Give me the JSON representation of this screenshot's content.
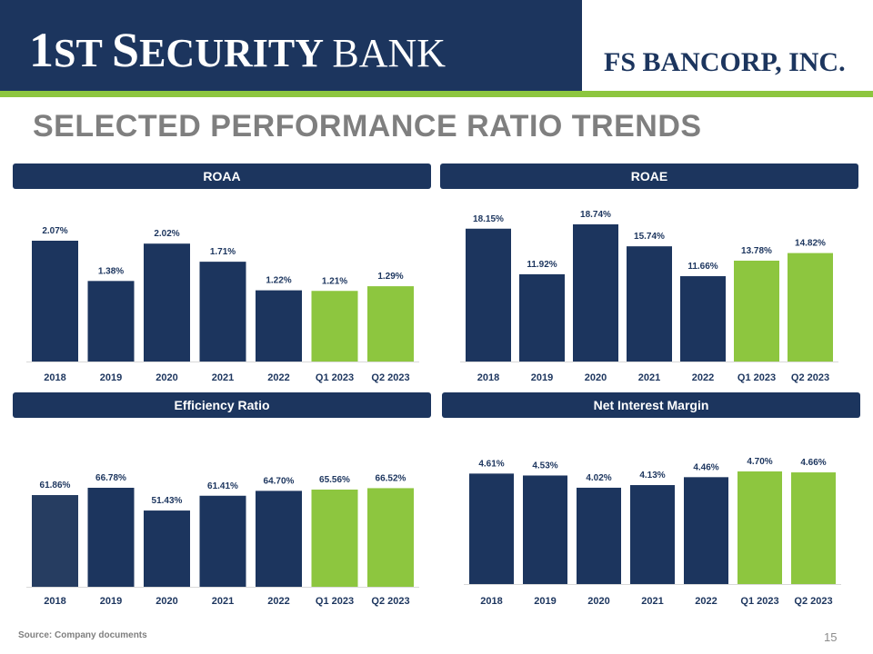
{
  "header": {
    "bank_name_first": "1",
    "bank_name_rest": "ST",
    "bank_name_security_s": "S",
    "bank_name_security_rest": "ECURITY",
    "bank_name_bank": "BANK",
    "bancorp_logo": "FS BANCORP, INC."
  },
  "title": "SELECTED PERFORMANCE RATIO TRENDS",
  "colors": {
    "navy": "#1c355e",
    "green": "#8dc63f",
    "eff2018": "#263d61"
  },
  "chart_data": [
    {
      "type": "bar",
      "title": "ROAA",
      "categories": [
        "2018",
        "2019",
        "2020",
        "2021",
        "2022",
        "Q1 2023",
        "Q2 2023"
      ],
      "values": [
        2.07,
        1.38,
        2.02,
        1.71,
        1.22,
        1.21,
        1.29
      ],
      "labels": [
        "2.07%",
        "1.38%",
        "2.02%",
        "1.71%",
        "1.22%",
        "1.21%",
        "1.29%"
      ],
      "highlight": [
        false,
        false,
        false,
        false,
        false,
        true,
        true
      ],
      "ylim": [
        0,
        2.07
      ]
    },
    {
      "type": "bar",
      "title": "ROAE",
      "categories": [
        "2018",
        "2019",
        "2020",
        "2021",
        "2022",
        "Q1 2023",
        "Q2 2023"
      ],
      "values": [
        18.15,
        11.92,
        18.74,
        15.74,
        11.66,
        13.78,
        14.82
      ],
      "labels": [
        "18.15%",
        "11.92%",
        "18.74%",
        "15.74%",
        "11.66%",
        "13.78%",
        "14.82%"
      ],
      "highlight": [
        false,
        false,
        false,
        false,
        false,
        true,
        true
      ],
      "ylim": [
        0,
        18.74
      ]
    },
    {
      "type": "bar",
      "title": "Efficiency Ratio",
      "categories": [
        "2018",
        "2019",
        "2020",
        "2021",
        "2022",
        "Q1 2023",
        "Q2 2023"
      ],
      "values": [
        61.86,
        66.78,
        51.43,
        61.41,
        64.7,
        65.56,
        66.52
      ],
      "labels": [
        "61.86%",
        "66.78%",
        "51.43%",
        "61.41%",
        "64.70%",
        "65.56%",
        "66.52%"
      ],
      "highlight": [
        false,
        false,
        false,
        false,
        false,
        true,
        true
      ],
      "ylim": [
        0,
        66.78
      ]
    },
    {
      "type": "bar",
      "title": "Net Interest Margin",
      "categories": [
        "2018",
        "2019",
        "2020",
        "2021",
        "2022",
        "Q1 2023",
        "Q2 2023"
      ],
      "values": [
        4.61,
        4.53,
        4.02,
        4.13,
        4.46,
        4.7,
        4.66
      ],
      "labels": [
        "4.61%",
        "4.53%",
        "4.02%",
        "4.13%",
        "4.46%",
        "4.70%",
        "4.66%"
      ],
      "highlight": [
        false,
        false,
        false,
        false,
        false,
        true,
        true
      ],
      "ylim": [
        0,
        4.7
      ]
    }
  ],
  "footer": {
    "source": "Source: Company documents",
    "page_number": "15"
  }
}
